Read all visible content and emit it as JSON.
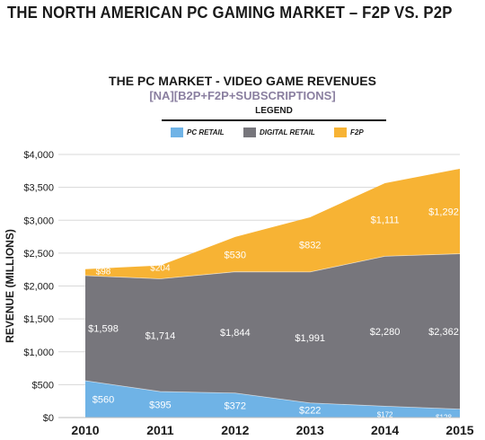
{
  "page": {
    "title": "THE NORTH AMERICAN PC GAMING MARKET – F2P VS. P2P"
  },
  "chart_data": {
    "type": "area",
    "title": "THE PC MARKET - VIDEO GAME REVENUES",
    "subtitle": "[NA][B2P+F2P+SUBSCRIPTIONS]",
    "legend_title": "LEGEND",
    "legend_position": "top",
    "stacked": true,
    "xlabel": "",
    "ylabel": "REVENUE (MILLIONS)",
    "categories": [
      "2010",
      "2011",
      "2012",
      "2013",
      "2014",
      "2015"
    ],
    "ylim": [
      0,
      4000
    ],
    "yticks": [
      0,
      500,
      1000,
      1500,
      2000,
      2500,
      3000,
      3500,
      4000
    ],
    "ytick_labels": [
      "$0",
      "$500",
      "$1,000",
      "$1,500",
      "$2,000",
      "$2,500",
      "$3,000",
      "$3,500",
      "$4,000"
    ],
    "series": [
      {
        "name": "PC RETAIL",
        "color": "#6fb3e6",
        "values": [
          560,
          395,
          372,
          222,
          172,
          128
        ],
        "labels": [
          "$560",
          "$395",
          "$372",
          "$222",
          "$172",
          "$128"
        ]
      },
      {
        "name": "DIGITAL RETAIL",
        "color": "#77767c",
        "values": [
          1598,
          1714,
          1844,
          1991,
          2280,
          2362
        ],
        "labels": [
          "$1,598",
          "$1,714",
          "$1,844",
          "$1,991",
          "$2,280",
          "$2,362"
        ]
      },
      {
        "name": "F2P",
        "color": "#f7b334",
        "values": [
          98,
          204,
          530,
          832,
          1111,
          1292
        ],
        "labels": [
          "$98",
          "$204",
          "$530",
          "$832",
          "$1,111",
          "$1,292"
        ]
      }
    ]
  }
}
